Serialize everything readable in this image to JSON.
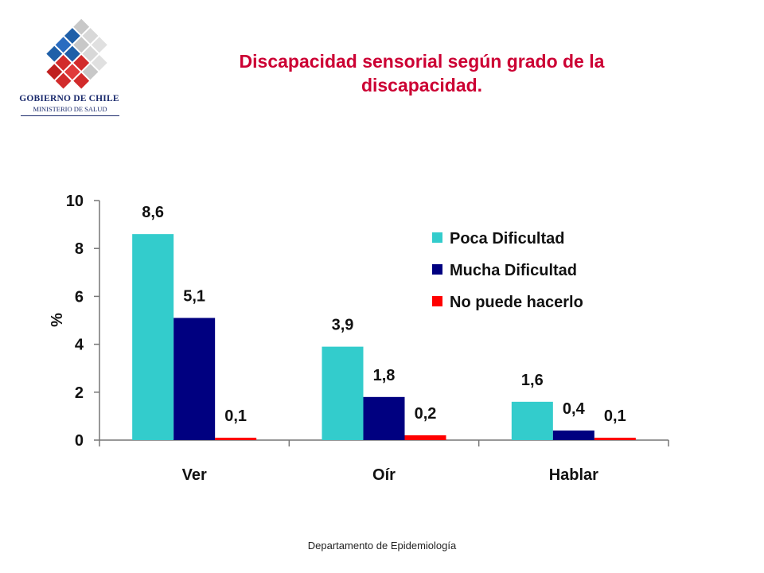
{
  "logo": {
    "line1": "GOBIERNO DE CHILE",
    "line2": "MINISTERIO DE SALUD"
  },
  "footer": "Departamento de Epidemiología",
  "chart_data": {
    "type": "bar",
    "title": "Discapacidad sensorial según grado de la discapacidad.",
    "ylabel": "%",
    "xlabel": "",
    "ylim": [
      0,
      10
    ],
    "yticks": [
      "0",
      "2",
      "4",
      "6",
      "8",
      "10"
    ],
    "categories": [
      "Ver",
      "Oír",
      "Hablar"
    ],
    "series": [
      {
        "name": "Poca Dificultad",
        "values": [
          8.6,
          3.9,
          1.6
        ],
        "labels": [
          "8,6",
          "3,9",
          "1,6"
        ],
        "color": "#33cccc"
      },
      {
        "name": "Mucha Dificultad",
        "values": [
          5.1,
          1.8,
          0.4
        ],
        "labels": [
          "5,1",
          "1,8",
          "0,4"
        ],
        "color": "#000080"
      },
      {
        "name": "No puede hacerlo",
        "values": [
          0.1,
          0.2,
          0.1
        ],
        "labels": [
          "0,1",
          "0,2",
          "0,1"
        ],
        "color": "#ff0000"
      }
    ],
    "legend_position": "top-right",
    "grid": false
  }
}
